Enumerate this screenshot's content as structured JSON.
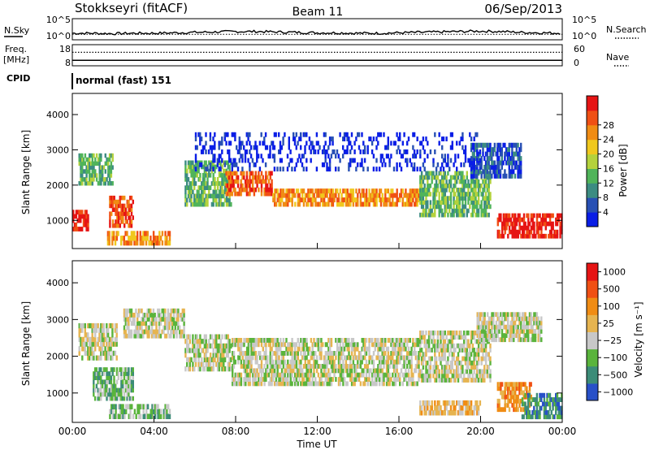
{
  "header": {
    "station": "Stokkseyri (fitACF)",
    "beam": "Beam 11",
    "date": "06/Sep/2013"
  },
  "chart_data": [
    {
      "id": "noise",
      "type": "line",
      "left_label": "N.Sky",
      "right_label": "N.Search",
      "left_ticks": [
        "10^5",
        "10^0"
      ],
      "right_ticks": [
        "10^5",
        "10^0"
      ],
      "series": [
        {
          "name": "N.Sky",
          "style": "solid",
          "x": [
            0,
            1,
            2,
            3,
            4,
            5,
            6,
            7,
            8,
            9,
            10,
            11,
            12,
            13,
            14,
            15,
            16,
            17,
            18,
            19,
            20,
            21,
            22,
            23,
            24
          ],
          "values": [
            1.5,
            1.5,
            1.4,
            1.5,
            1.5,
            1.6,
            1.7,
            1.8,
            1.9,
            1.9,
            1.8,
            1.7,
            1.6,
            1.6,
            1.5,
            1.5,
            1.6,
            1.7,
            1.8,
            1.9,
            2.0,
            1.9,
            1.7,
            1.6,
            1.5
          ]
        },
        {
          "name": "N.Search",
          "style": "dotted",
          "x": [
            0,
            24
          ],
          "values": [
            1.3,
            1.3
          ]
        }
      ]
    },
    {
      "id": "freq",
      "type": "line",
      "left_label": "Freq.",
      "left_unit": "[MHz]",
      "right_label": "Nave",
      "left_ticks": [
        "18",
        "8"
      ],
      "right_ticks": [
        "60",
        "0"
      ],
      "series": [
        {
          "name": "Freq.",
          "style": "solid",
          "x": [
            0,
            24
          ],
          "values": [
            10.6,
            10.6
          ]
        },
        {
          "name": "Nave",
          "style": "dotted",
          "x": [
            0,
            24
          ],
          "values": [
            14.4,
            14.4
          ]
        }
      ]
    },
    {
      "id": "cpid",
      "type": "table",
      "label": "CPID",
      "text": "normal (fast) 151"
    },
    {
      "id": "power",
      "type": "heatmap",
      "ylabel": "Slant Range [km]",
      "yticks": [
        "1000",
        "2000",
        "3000",
        "4000"
      ],
      "ylim": [
        200,
        4600
      ],
      "xlim": [
        0,
        24
      ],
      "colorbar": {
        "label": "Power [dB]",
        "ticks": [
          "4",
          "8",
          "12",
          "16",
          "20",
          "24",
          "28"
        ],
        "colors": [
          "#0a1ee6",
          "#2850b4",
          "#3c8c82",
          "#50b45a",
          "#b4d23c",
          "#f0c81e",
          "#f08c14",
          "#f05014",
          "#e61414"
        ]
      },
      "regions": [
        {
          "t0": 0.0,
          "t1": 0.8,
          "r0": 700,
          "r1": 1300,
          "level": 8
        },
        {
          "t0": 0.3,
          "t1": 2.0,
          "r0": 2000,
          "r1": 2900,
          "level": 3
        },
        {
          "t0": 1.8,
          "t1": 3.0,
          "r0": 800,
          "r1": 1700,
          "level": 7
        },
        {
          "t0": 1.7,
          "t1": 4.8,
          "r0": 300,
          "r1": 700,
          "level": 6
        },
        {
          "t0": 5.5,
          "t1": 7.8,
          "r0": 1400,
          "r1": 2700,
          "level": 3
        },
        {
          "t0": 7.5,
          "t1": 9.8,
          "r0": 1700,
          "r1": 2400,
          "level": 7
        },
        {
          "t0": 9.8,
          "t1": 17.0,
          "r0": 1400,
          "r1": 1900,
          "level": 6
        },
        {
          "t0": 17.0,
          "t1": 20.5,
          "r0": 1100,
          "r1": 2400,
          "level": 3
        },
        {
          "t0": 19.5,
          "t1": 22.0,
          "r0": 2200,
          "r1": 3200,
          "level": 1
        },
        {
          "t0": 20.8,
          "t1": 24.0,
          "r0": 500,
          "r1": 1200,
          "level": 8
        },
        {
          "t0": 6.0,
          "t1": 20.0,
          "r0": 2400,
          "r1": 3500,
          "level": 0
        }
      ]
    },
    {
      "id": "velocity",
      "type": "heatmap",
      "ylabel": "Slant Range [km]",
      "yticks": [
        "1000",
        "2000",
        "3000",
        "4000"
      ],
      "ylim": [
        200,
        4600
      ],
      "xlim": [
        0,
        24
      ],
      "xlabel": "Time UT",
      "xticks": [
        "00:00",
        "04:00",
        "08:00",
        "12:00",
        "16:00",
        "20:00",
        "00:00"
      ],
      "colorbar": {
        "label": "Velocity [m s⁻¹]",
        "ticks": [
          "1000",
          "500",
          "100",
          "25",
          "−25",
          "−100",
          "−500",
          "−1000"
        ],
        "colors": [
          "#2850c8",
          "#3c8c78",
          "#5ab43c",
          "#c8c8c8",
          "#e6b450",
          "#f08c14",
          "#f05014",
          "#e61414"
        ]
      },
      "regions": [
        {
          "t0": 0.3,
          "t1": 2.2,
          "r0": 1900,
          "r1": 2900,
          "level": 3
        },
        {
          "t0": 1.0,
          "t1": 3.0,
          "r0": 800,
          "r1": 1700,
          "level": 2
        },
        {
          "t0": 1.8,
          "t1": 4.8,
          "r0": 300,
          "r1": 700,
          "level": 2
        },
        {
          "t0": 2.5,
          "t1": 5.5,
          "r0": 2500,
          "r1": 3300,
          "level": 3
        },
        {
          "t0": 5.5,
          "t1": 7.8,
          "r0": 1600,
          "r1": 2600,
          "level": 3
        },
        {
          "t0": 7.8,
          "t1": 17.0,
          "r0": 1200,
          "r1": 2500,
          "level": 3
        },
        {
          "t0": 17.0,
          "t1": 20.5,
          "r0": 1300,
          "r1": 2700,
          "level": 3
        },
        {
          "t0": 19.8,
          "t1": 23.0,
          "r0": 2400,
          "r1": 3200,
          "level": 3
        },
        {
          "t0": 20.8,
          "t1": 22.5,
          "r0": 500,
          "r1": 1300,
          "level": 5
        },
        {
          "t0": 22.0,
          "t1": 24.0,
          "r0": 300,
          "r1": 1000,
          "level": 1
        },
        {
          "t0": 17.0,
          "t1": 20.0,
          "r0": 400,
          "r1": 800,
          "level": 4
        }
      ]
    }
  ]
}
